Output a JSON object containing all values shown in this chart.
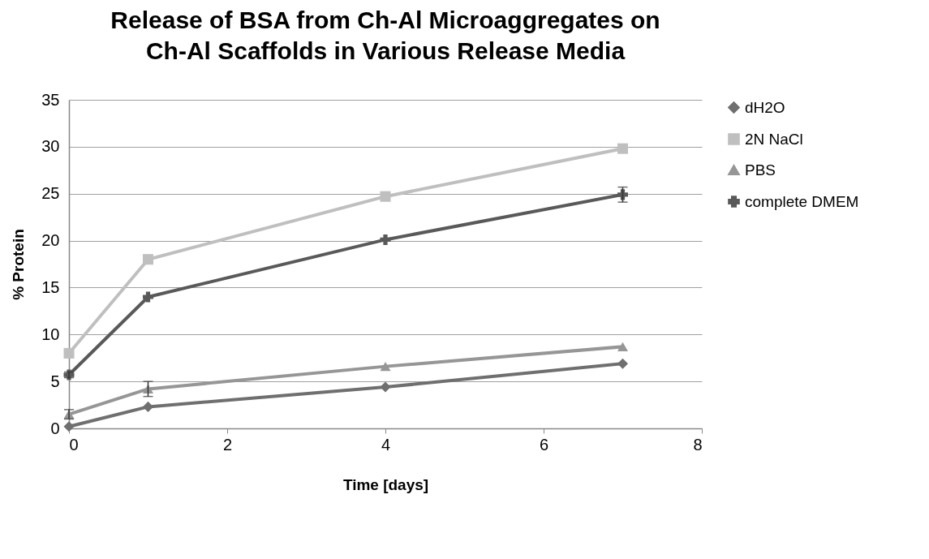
{
  "chart_data": {
    "type": "line",
    "title": "Release of BSA from Ch-Al Microaggregates on Ch-Al Scaffolds in Various Release Media",
    "xlabel": "Time [days]",
    "ylabel": "% Protein",
    "x": [
      0,
      1,
      4,
      7
    ],
    "xlim": [
      0,
      8
    ],
    "xticks": [
      0,
      2,
      4,
      6,
      8
    ],
    "ylim": [
      0,
      35
    ],
    "yticks": [
      0,
      5,
      10,
      15,
      20,
      25,
      30,
      35
    ],
    "grid": "y",
    "legend": "right",
    "series": [
      {
        "name": "dH2O",
        "color": "#6f6f6f",
        "marker": "diamond",
        "values": [
          0.2,
          2.3,
          4.4,
          6.9
        ]
      },
      {
        "name": "2N NaCl",
        "color": "#bfbfbf",
        "marker": "square",
        "values": [
          8.0,
          18.0,
          24.7,
          29.8
        ]
      },
      {
        "name": "PBS",
        "color": "#969696",
        "marker": "triangle",
        "values": [
          1.5,
          4.2,
          6.6,
          8.7
        ],
        "errors": [
          0.5,
          0.8,
          null,
          null
        ]
      },
      {
        "name": "complete DMEM",
        "color": "#595959",
        "marker": "cross",
        "values": [
          5.7,
          14.0,
          20.1,
          24.9
        ],
        "errors": [
          0.3,
          null,
          null,
          0.8
        ]
      }
    ]
  }
}
